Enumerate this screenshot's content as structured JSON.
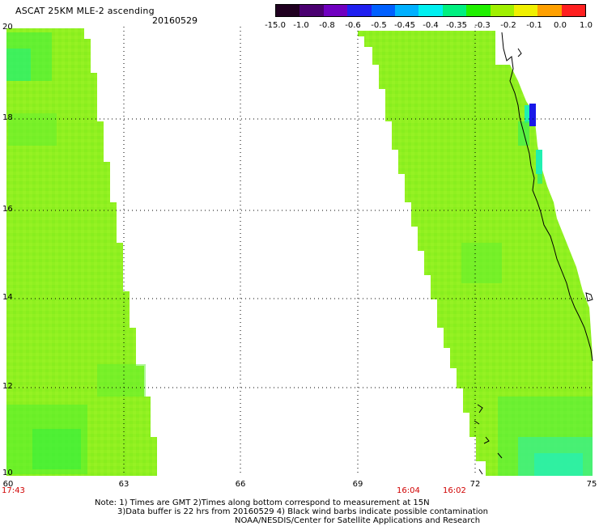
{
  "header": {
    "title": "ASCAT 25KM MLE-2 ascending",
    "date": "20160529"
  },
  "colorbar": {
    "labels": [
      "-15.0",
      "-1.0",
      "-0.8",
      "-0.6",
      "-0.5",
      "-0.45",
      "-0.4",
      "-0.35",
      "-0.3",
      "-0.2",
      "-0.1",
      "0.0",
      "1.0"
    ],
    "colors": [
      "#200020",
      "#4a0070",
      "#7000c0",
      "#2020f0",
      "#0060ff",
      "#00b0ff",
      "#00f0f0",
      "#00f080",
      "#20f000",
      "#a0f000",
      "#f0f000",
      "#ffa000",
      "#ff2020"
    ]
  },
  "axes": {
    "lat_labels": [
      "20",
      "18",
      "16",
      "14",
      "12",
      "10"
    ],
    "lon_labels": [
      "60",
      "63",
      "66",
      "69",
      "72",
      "75"
    ],
    "time_labels": [
      "17:43",
      "16:04",
      "16:02"
    ]
  },
  "notes": {
    "line1": "Note: 1) Times are GMT 2)Times along bottom correspond to measurement at 15N",
    "line2": "3)Data buffer is 22 hrs from 20160529 4) Black wind barbs indicate possible contamination",
    "line3": "NOAA/NESDIS/Center for Satellite Applications and Research"
  },
  "colors": {
    "swath_main": "#8ef21a",
    "swath_green": "#3cf038",
    "swath_cyan": "#20f0b0",
    "swath_blue": "#1818e8",
    "coast": "#000000",
    "grid": "#000000",
    "time_text": "#d00000"
  }
}
